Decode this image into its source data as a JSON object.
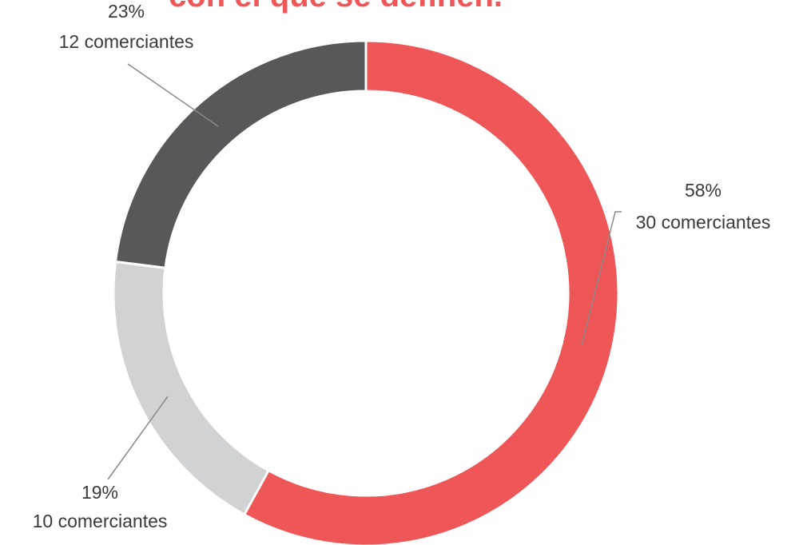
{
  "chart_data": {
    "type": "donut",
    "title": "con el que se definen.",
    "values": [
      58,
      19,
      23
    ],
    "value_labels": [
      "58%",
      "19%",
      "23%"
    ],
    "count_labels": [
      "30 comerciantes",
      "10 comerciantes",
      "12 comerciantes"
    ],
    "colors": [
      "#ef5658",
      "#d1d2d4",
      "#58585a"
    ]
  }
}
